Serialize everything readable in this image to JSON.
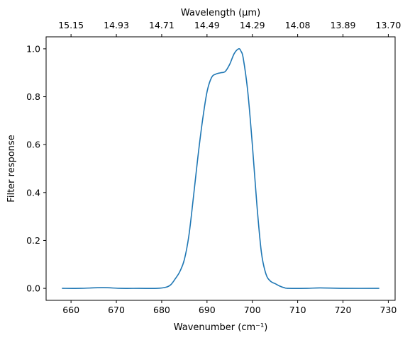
{
  "chart_data": {
    "type": "line",
    "title": "",
    "xlabel": "Wavenumber (cm⁻¹)",
    "ylabel": "Filter response",
    "top_xlabel": "Wavelength (μm)",
    "xlim": [
      654.5,
      731.5
    ],
    "ylim": [
      -0.05,
      1.05
    ],
    "xticks": [
      660,
      670,
      680,
      690,
      700,
      710,
      720,
      730
    ],
    "yticks": [
      0.0,
      0.2,
      0.4,
      0.6,
      0.8,
      1.0
    ],
    "top_ticks": [
      {
        "at": 660,
        "label": "15.15"
      },
      {
        "at": 670,
        "label": "14.93"
      },
      {
        "at": 680,
        "label": "14.71"
      },
      {
        "at": 690,
        "label": "14.49"
      },
      {
        "at": 700,
        "label": "14.29"
      },
      {
        "at": 710,
        "label": "14.08"
      },
      {
        "at": 720,
        "label": "13.89"
      },
      {
        "at": 730,
        "label": "13.70"
      }
    ],
    "grid": false,
    "series": [
      {
        "name": "",
        "color": "#1f77b4",
        "x": [
          658,
          662,
          667,
          671,
          675,
          679,
          681,
          682,
          683,
          684,
          685,
          686,
          687,
          688,
          689,
          690,
          691,
          692,
          693,
          694,
          695,
          696,
          697,
          697.5,
          698,
          699,
          700,
          701,
          702,
          703,
          704,
          705,
          706,
          707,
          708,
          712,
          715,
          720,
          728
        ],
        "y": [
          0.0,
          0.0,
          0.003,
          0.0,
          0.0,
          0.0,
          0.005,
          0.015,
          0.04,
          0.07,
          0.12,
          0.22,
          0.38,
          0.55,
          0.7,
          0.82,
          0.88,
          0.895,
          0.9,
          0.905,
          0.935,
          0.98,
          1.0,
          0.99,
          0.96,
          0.82,
          0.6,
          0.35,
          0.15,
          0.06,
          0.03,
          0.02,
          0.01,
          0.003,
          0.0,
          0.0,
          0.002,
          0.0,
          0.0
        ]
      }
    ]
  }
}
